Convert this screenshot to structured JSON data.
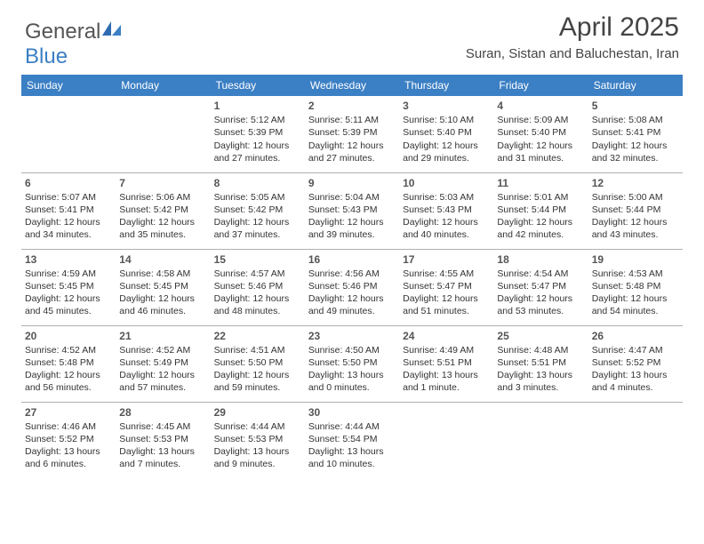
{
  "brand": {
    "part1": "General",
    "part2": "Blue"
  },
  "title": "April 2025",
  "subtitle": "Suran, Sistan and Baluchestan, Iran",
  "headerBg": "#3b7fc4",
  "dayHeaders": [
    "Sunday",
    "Monday",
    "Tuesday",
    "Wednesday",
    "Thursday",
    "Friday",
    "Saturday"
  ],
  "weeks": [
    [
      null,
      null,
      {
        "n": "1",
        "sr": "Sunrise: 5:12 AM",
        "ss": "Sunset: 5:39 PM",
        "d1": "Daylight: 12 hours",
        "d2": "and 27 minutes."
      },
      {
        "n": "2",
        "sr": "Sunrise: 5:11 AM",
        "ss": "Sunset: 5:39 PM",
        "d1": "Daylight: 12 hours",
        "d2": "and 27 minutes."
      },
      {
        "n": "3",
        "sr": "Sunrise: 5:10 AM",
        "ss": "Sunset: 5:40 PM",
        "d1": "Daylight: 12 hours",
        "d2": "and 29 minutes."
      },
      {
        "n": "4",
        "sr": "Sunrise: 5:09 AM",
        "ss": "Sunset: 5:40 PM",
        "d1": "Daylight: 12 hours",
        "d2": "and 31 minutes."
      },
      {
        "n": "5",
        "sr": "Sunrise: 5:08 AM",
        "ss": "Sunset: 5:41 PM",
        "d1": "Daylight: 12 hours",
        "d2": "and 32 minutes."
      }
    ],
    [
      {
        "n": "6",
        "sr": "Sunrise: 5:07 AM",
        "ss": "Sunset: 5:41 PM",
        "d1": "Daylight: 12 hours",
        "d2": "and 34 minutes."
      },
      {
        "n": "7",
        "sr": "Sunrise: 5:06 AM",
        "ss": "Sunset: 5:42 PM",
        "d1": "Daylight: 12 hours",
        "d2": "and 35 minutes."
      },
      {
        "n": "8",
        "sr": "Sunrise: 5:05 AM",
        "ss": "Sunset: 5:42 PM",
        "d1": "Daylight: 12 hours",
        "d2": "and 37 minutes."
      },
      {
        "n": "9",
        "sr": "Sunrise: 5:04 AM",
        "ss": "Sunset: 5:43 PM",
        "d1": "Daylight: 12 hours",
        "d2": "and 39 minutes."
      },
      {
        "n": "10",
        "sr": "Sunrise: 5:03 AM",
        "ss": "Sunset: 5:43 PM",
        "d1": "Daylight: 12 hours",
        "d2": "and 40 minutes."
      },
      {
        "n": "11",
        "sr": "Sunrise: 5:01 AM",
        "ss": "Sunset: 5:44 PM",
        "d1": "Daylight: 12 hours",
        "d2": "and 42 minutes."
      },
      {
        "n": "12",
        "sr": "Sunrise: 5:00 AM",
        "ss": "Sunset: 5:44 PM",
        "d1": "Daylight: 12 hours",
        "d2": "and 43 minutes."
      }
    ],
    [
      {
        "n": "13",
        "sr": "Sunrise: 4:59 AM",
        "ss": "Sunset: 5:45 PM",
        "d1": "Daylight: 12 hours",
        "d2": "and 45 minutes."
      },
      {
        "n": "14",
        "sr": "Sunrise: 4:58 AM",
        "ss": "Sunset: 5:45 PM",
        "d1": "Daylight: 12 hours",
        "d2": "and 46 minutes."
      },
      {
        "n": "15",
        "sr": "Sunrise: 4:57 AM",
        "ss": "Sunset: 5:46 PM",
        "d1": "Daylight: 12 hours",
        "d2": "and 48 minutes."
      },
      {
        "n": "16",
        "sr": "Sunrise: 4:56 AM",
        "ss": "Sunset: 5:46 PM",
        "d1": "Daylight: 12 hours",
        "d2": "and 49 minutes."
      },
      {
        "n": "17",
        "sr": "Sunrise: 4:55 AM",
        "ss": "Sunset: 5:47 PM",
        "d1": "Daylight: 12 hours",
        "d2": "and 51 minutes."
      },
      {
        "n": "18",
        "sr": "Sunrise: 4:54 AM",
        "ss": "Sunset: 5:47 PM",
        "d1": "Daylight: 12 hours",
        "d2": "and 53 minutes."
      },
      {
        "n": "19",
        "sr": "Sunrise: 4:53 AM",
        "ss": "Sunset: 5:48 PM",
        "d1": "Daylight: 12 hours",
        "d2": "and 54 minutes."
      }
    ],
    [
      {
        "n": "20",
        "sr": "Sunrise: 4:52 AM",
        "ss": "Sunset: 5:48 PM",
        "d1": "Daylight: 12 hours",
        "d2": "and 56 minutes."
      },
      {
        "n": "21",
        "sr": "Sunrise: 4:52 AM",
        "ss": "Sunset: 5:49 PM",
        "d1": "Daylight: 12 hours",
        "d2": "and 57 minutes."
      },
      {
        "n": "22",
        "sr": "Sunrise: 4:51 AM",
        "ss": "Sunset: 5:50 PM",
        "d1": "Daylight: 12 hours",
        "d2": "and 59 minutes."
      },
      {
        "n": "23",
        "sr": "Sunrise: 4:50 AM",
        "ss": "Sunset: 5:50 PM",
        "d1": "Daylight: 13 hours",
        "d2": "and 0 minutes."
      },
      {
        "n": "24",
        "sr": "Sunrise: 4:49 AM",
        "ss": "Sunset: 5:51 PM",
        "d1": "Daylight: 13 hours",
        "d2": "and 1 minute."
      },
      {
        "n": "25",
        "sr": "Sunrise: 4:48 AM",
        "ss": "Sunset: 5:51 PM",
        "d1": "Daylight: 13 hours",
        "d2": "and 3 minutes."
      },
      {
        "n": "26",
        "sr": "Sunrise: 4:47 AM",
        "ss": "Sunset: 5:52 PM",
        "d1": "Daylight: 13 hours",
        "d2": "and 4 minutes."
      }
    ],
    [
      {
        "n": "27",
        "sr": "Sunrise: 4:46 AM",
        "ss": "Sunset: 5:52 PM",
        "d1": "Daylight: 13 hours",
        "d2": "and 6 minutes."
      },
      {
        "n": "28",
        "sr": "Sunrise: 4:45 AM",
        "ss": "Sunset: 5:53 PM",
        "d1": "Daylight: 13 hours",
        "d2": "and 7 minutes."
      },
      {
        "n": "29",
        "sr": "Sunrise: 4:44 AM",
        "ss": "Sunset: 5:53 PM",
        "d1": "Daylight: 13 hours",
        "d2": "and 9 minutes."
      },
      {
        "n": "30",
        "sr": "Sunrise: 4:44 AM",
        "ss": "Sunset: 5:54 PM",
        "d1": "Daylight: 13 hours",
        "d2": "and 10 minutes."
      },
      null,
      null,
      null
    ]
  ]
}
